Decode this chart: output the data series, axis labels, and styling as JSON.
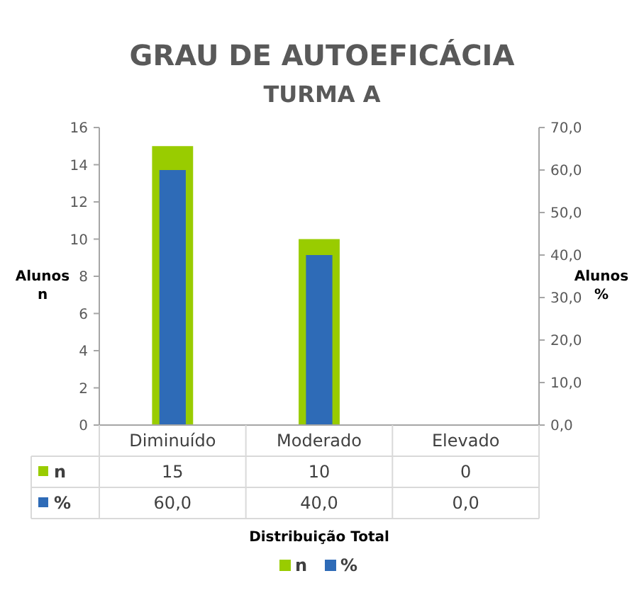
{
  "chart_data": {
    "type": "bar",
    "title": "GRAU DE AUTOEFICÁCIA",
    "subtitle": "TURMA A",
    "annotations": [
      "Distribuição Total"
    ],
    "ylabel": "Alunos\nn",
    "y2label": "Alunos\n%",
    "categories": [
      "Diminuído",
      "Moderado",
      "Elevado"
    ],
    "series": [
      {
        "name": "n",
        "color": "#99cc00",
        "values": [
          15,
          10,
          0
        ],
        "value_labels": [
          "15",
          "10",
          "0"
        ]
      },
      {
        "name": "%",
        "color": "#2e6bb7",
        "values": [
          60,
          40,
          0
        ],
        "axis": "y2",
        "value_labels": [
          "60,0",
          "40,0",
          "0,0"
        ]
      }
    ],
    "ylim": [
      0,
      16
    ],
    "yticks": [
      0,
      2,
      4,
      6,
      8,
      10,
      12,
      14,
      16
    ],
    "y2lim": [
      0,
      70
    ],
    "y2ticks": [
      {
        "value": 0,
        "label": "0,0"
      },
      {
        "value": 10,
        "label": "10,0"
      },
      {
        "value": 20,
        "label": "20,0"
      },
      {
        "value": 30,
        "label": "30,0"
      },
      {
        "value": 40,
        "label": "40,0"
      },
      {
        "value": 50,
        "label": "50,0"
      },
      {
        "value": 60,
        "label": "60,0"
      },
      {
        "value": 70,
        "label": "70,0"
      }
    ],
    "data_labels": true,
    "legend": "bottom",
    "grid": false
  }
}
